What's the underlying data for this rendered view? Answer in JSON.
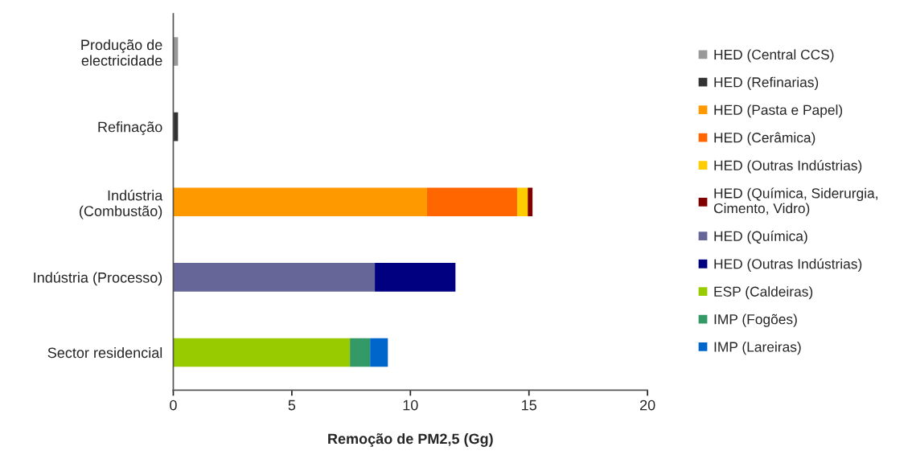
{
  "chart_data": {
    "type": "bar",
    "orientation": "horizontal",
    "stacked": true,
    "xlabel": "Remoção de PM2,5 (Gg)",
    "categories": [
      "Produção de\nelectricidade",
      "Refinação",
      "Indústria\n(Combustão)",
      "Indústria (Processo)",
      "Sector residencial"
    ],
    "series": [
      {
        "name": "HED (Central CCS)",
        "color": "#999999",
        "values": [
          0.2,
          null,
          null,
          null,
          null
        ]
      },
      {
        "name": "HED (Refinarias)",
        "color": "#333333",
        "values": [
          null,
          0.2,
          null,
          null,
          null
        ]
      },
      {
        "name": "HED (Pasta e Papel)",
        "color": "#ff9900",
        "values": [
          null,
          null,
          10.7,
          null,
          null
        ]
      },
      {
        "name": "HED (Cerâmica)",
        "color": "#ff6600",
        "values": [
          null,
          null,
          3.8,
          null,
          null
        ]
      },
      {
        "name": "HED (Outras Indústrias)",
        "color": "#ffcc00",
        "values": [
          null,
          null,
          0.45,
          null,
          null
        ]
      },
      {
        "name": "HED (Química, Siderurgia,\nCimento, Vidro)",
        "color": "#800000",
        "values": [
          null,
          null,
          0.2,
          null,
          null
        ]
      },
      {
        "name": "HED (Química)",
        "color": "#666699",
        "values": [
          null,
          null,
          null,
          8.5,
          null
        ]
      },
      {
        "name": "HED (Outras Indústrias)",
        "color": "#000080",
        "values": [
          null,
          null,
          null,
          3.4,
          null
        ]
      },
      {
        "name": "ESP (Caldeiras)",
        "color": "#99cc00",
        "values": [
          null,
          null,
          null,
          null,
          7.45
        ]
      },
      {
        "name": "IMP (Fogões)",
        "color": "#339966",
        "values": [
          null,
          null,
          null,
          null,
          0.85
        ]
      },
      {
        "name": "IMP (Lareiras)",
        "color": "#0066cc",
        "values": [
          null,
          null,
          null,
          null,
          0.75
        ]
      }
    ],
    "xlim": [
      0,
      20
    ],
    "xticks": [
      0,
      5,
      10,
      15,
      20
    ],
    "grid": false,
    "legend": "right"
  }
}
